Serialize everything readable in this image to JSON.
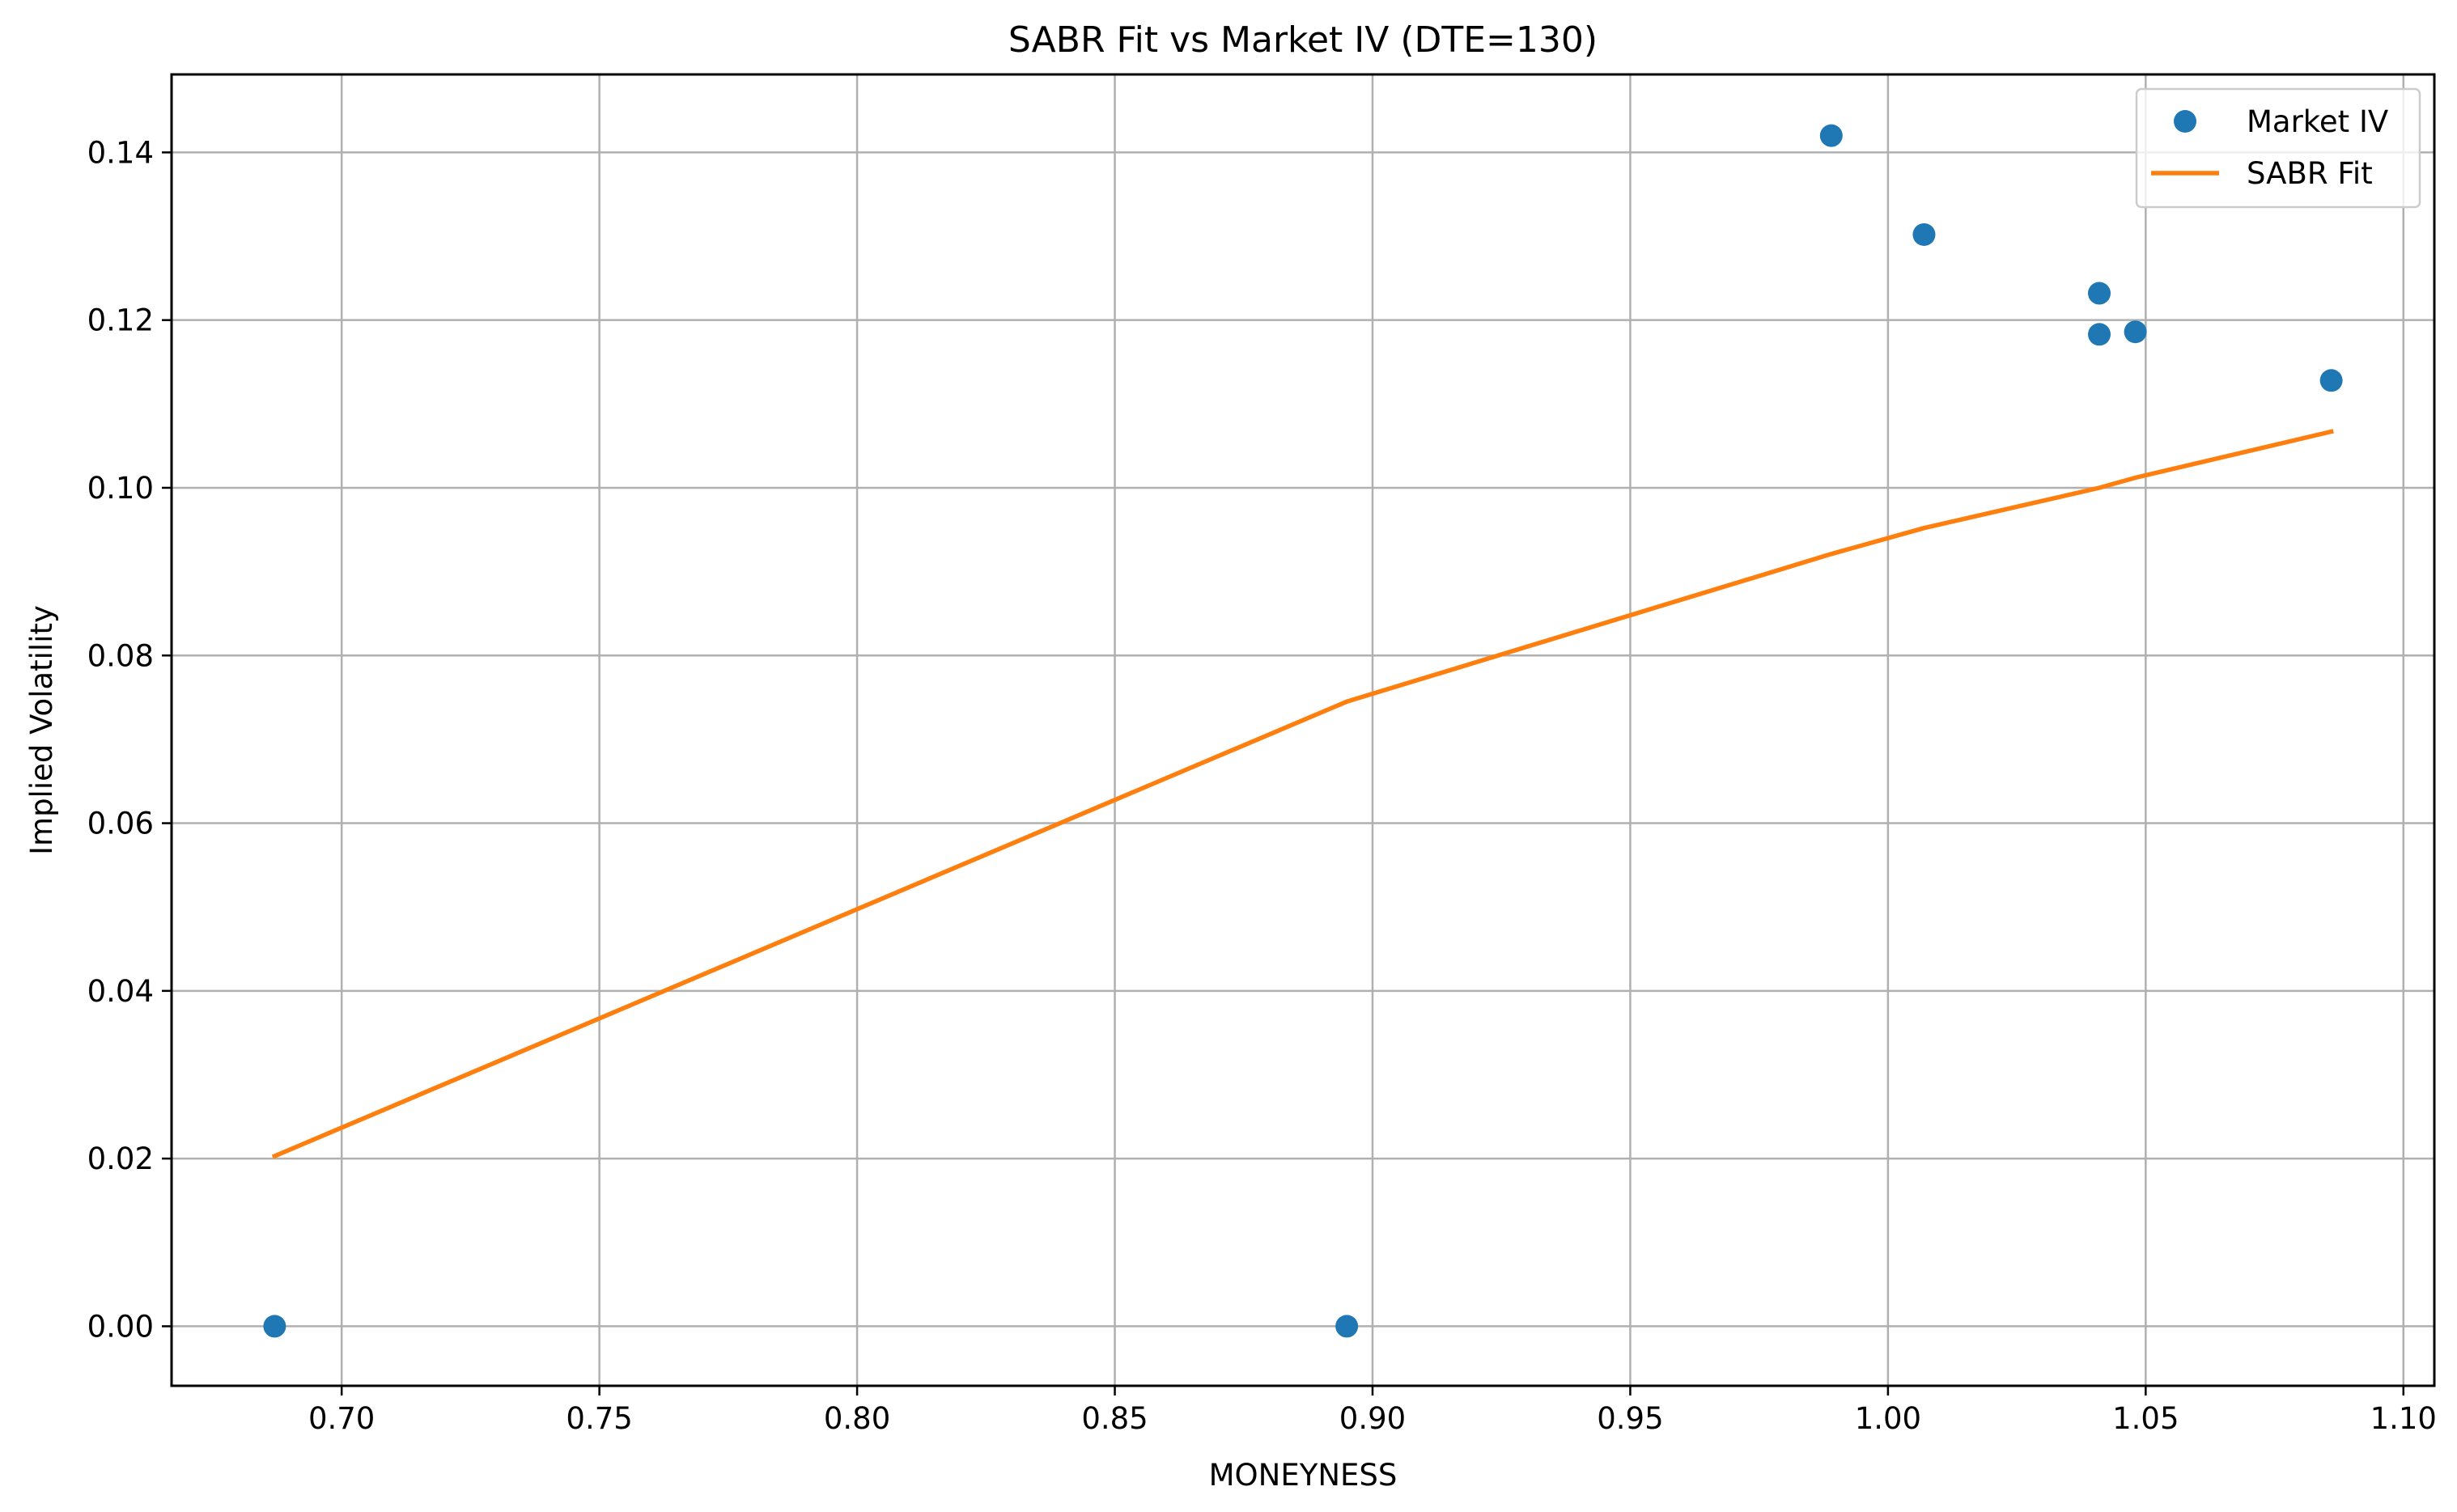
{
  "chart_data": {
    "type": "line",
    "title": "SABR Fit vs Market IV (DTE=130)",
    "xlabel": "MONEYNESS",
    "ylabel": "Implied Volatility",
    "xlim": [
      0.667,
      1.106
    ],
    "ylim": [
      -0.0071,
      0.1493
    ],
    "xticks": [
      "0.70",
      "0.75",
      "0.80",
      "0.85",
      "0.90",
      "0.95",
      "1.00",
      "1.05",
      "1.10"
    ],
    "yticks": [
      "0.00",
      "0.02",
      "0.04",
      "0.06",
      "0.08",
      "0.10",
      "0.12",
      "0.14"
    ],
    "grid": true,
    "legend_position": "top-right",
    "series": [
      {
        "name": "Market IV",
        "kind": "scatter",
        "color": "#1f77b4",
        "points": [
          [
            0.687,
            0.0
          ],
          [
            0.895,
            0.0
          ],
          [
            0.989,
            0.142
          ],
          [
            1.007,
            0.1302
          ],
          [
            1.041,
            0.1232
          ],
          [
            1.041,
            0.1183
          ],
          [
            1.048,
            0.1186
          ],
          [
            1.086,
            0.1128
          ]
        ]
      },
      {
        "name": "SABR Fit",
        "kind": "line",
        "color": "#ff7f0e",
        "points": [
          [
            0.687,
            0.0203
          ],
          [
            0.895,
            0.0745
          ],
          [
            0.989,
            0.0921
          ],
          [
            1.007,
            0.0952
          ],
          [
            1.041,
            0.1
          ],
          [
            1.048,
            0.1012
          ],
          [
            1.086,
            0.1067
          ]
        ]
      }
    ]
  }
}
